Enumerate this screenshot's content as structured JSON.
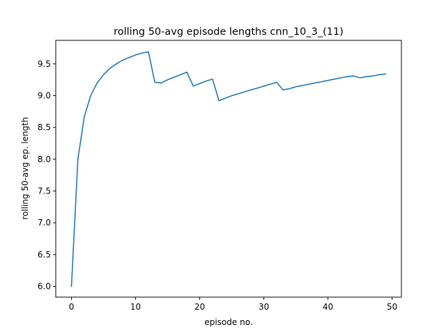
{
  "chart_data": {
    "type": "line",
    "title": "rolling 50-avg episode lengths cnn_10_3_(11)",
    "xlabel": "episode no.",
    "ylabel": "rolling 50-avg ep. length",
    "xlim": [
      -2.45,
      51.45
    ],
    "ylim": [
      5.83,
      9.87
    ],
    "xticks": [
      0,
      10,
      20,
      30,
      40,
      50
    ],
    "yticks": [
      6.0,
      6.5,
      7.0,
      7.5,
      8.0,
      8.5,
      9.0,
      9.5
    ],
    "xtick_labels": [
      "0",
      "10",
      "20",
      "30",
      "40",
      "50"
    ],
    "ytick_labels": [
      "6.0",
      "6.5",
      "7.0",
      "7.5",
      "8.0",
      "8.5",
      "9.0",
      "9.5"
    ],
    "grid": false,
    "series": [
      {
        "color": "#1f77b4",
        "x": [
          0,
          1,
          2,
          3,
          4,
          5,
          6,
          7,
          8,
          9,
          10,
          11,
          12,
          13,
          14,
          15,
          16,
          17,
          18,
          19,
          20,
          21,
          22,
          23,
          24,
          25,
          26,
          27,
          28,
          29,
          30,
          31,
          32,
          33,
          34,
          35,
          36,
          37,
          38,
          39,
          40,
          41,
          42,
          43,
          44,
          45,
          46,
          47,
          48,
          49
        ],
        "y": [
          6.0,
          8.0,
          8.67,
          9.0,
          9.2,
          9.33,
          9.43,
          9.5,
          9.56,
          9.6,
          9.64,
          9.67,
          9.69,
          9.21,
          9.2,
          9.25,
          9.29,
          9.33,
          9.37,
          9.15,
          9.19,
          9.23,
          9.26,
          8.92,
          8.96,
          9.0,
          9.03,
          9.06,
          9.09,
          9.12,
          9.15,
          9.18,
          9.21,
          9.09,
          9.11,
          9.14,
          9.16,
          9.18,
          9.2,
          9.22,
          9.24,
          9.26,
          9.28,
          9.3,
          9.31,
          9.28,
          9.3,
          9.31,
          9.33,
          9.34
        ]
      }
    ]
  }
}
